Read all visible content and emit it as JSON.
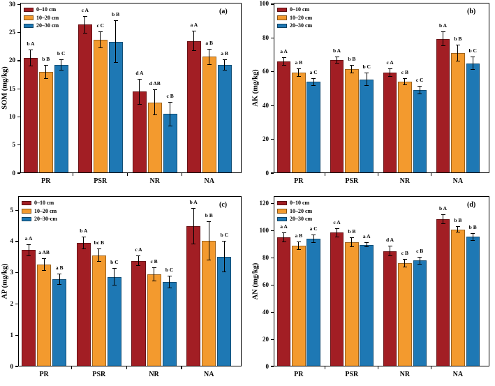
{
  "figure_title": "",
  "colors": {
    "depth_0_10": "#A21E24",
    "depth_10_20": "#F39A2E",
    "depth_20_30": "#1E78B4",
    "axis": "#000000",
    "background": "#FFFFFF"
  },
  "chart_data": [
    {
      "type": "bar",
      "panel_label": "(a)",
      "ylabel": "SOM (mg/kg)",
      "categories": [
        "PR",
        "PSR",
        "NR",
        "NA"
      ],
      "yticks": [
        0,
        5,
        10,
        15,
        20,
        25,
        30
      ],
      "ylim": [
        0,
        30.3
      ],
      "grid": false,
      "legend_position": "upper-left",
      "legend_labels": [
        "0–10 cm",
        "10–20 cm",
        "20–30 cm"
      ],
      "series": [
        {
          "name": "0–10 cm",
          "color": "#A21E24",
          "values": [
            20.5,
            26.4,
            14.5,
            23.5
          ],
          "errors": [
            1.5,
            1.6,
            2.3,
            1.8
          ],
          "sig_labels": [
            "b A",
            "c A",
            "d A",
            "a A"
          ]
        },
        {
          "name": "10–20 cm",
          "color": "#F39A2E",
          "values": [
            18.0,
            23.7,
            12.6,
            20.7
          ],
          "errors": [
            1.2,
            1.5,
            2.3,
            1.4
          ],
          "sig_labels": [
            "b B",
            "c C",
            "d AB",
            "a B"
          ]
        },
        {
          "name": "20–30 cm",
          "color": "#1E78B4",
          "values": [
            19.2,
            23.4,
            10.5,
            19.2
          ],
          "errors": [
            1.0,
            3.8,
            2.2,
            1.0
          ],
          "sig_labels": [
            "b C",
            "b B",
            "c B",
            "a B"
          ]
        }
      ]
    },
    {
      "type": "bar",
      "panel_label": "(b)",
      "ylabel": "AK (mg/kg)",
      "categories": [
        "PR",
        "PSR",
        "NR",
        "NA"
      ],
      "yticks": [
        0,
        20,
        40,
        60,
        80,
        100
      ],
      "ylim": [
        0,
        100.8
      ],
      "grid": false,
      "legend_position": "upper-left",
      "legend_labels": [
        "0–10 cm",
        "10–20 cm",
        "20–30 cm"
      ],
      "series": [
        {
          "name": "0–10 cm",
          "color": "#A21E24",
          "values": [
            66.0,
            67.0,
            59.5,
            79.5
          ],
          "errors": [
            2.5,
            2.0,
            2.5,
            4.5
          ],
          "sig_labels": [
            "a A",
            "b A",
            "c A",
            "b A"
          ]
        },
        {
          "name": "10–20 cm",
          "color": "#F39A2E",
          "values": [
            59.5,
            61.5,
            54.0,
            71.0
          ],
          "errors": [
            2.5,
            2.5,
            2.0,
            5.0
          ],
          "sig_labels": [
            "a B",
            "b B",
            "c B",
            "b B"
          ]
        },
        {
          "name": "20–30 cm",
          "color": "#1E78B4",
          "values": [
            54.0,
            55.5,
            49.0,
            65.0
          ],
          "errors": [
            2.2,
            4.0,
            2.5,
            4.0
          ],
          "sig_labels": [
            "a C",
            "b C",
            "c C",
            "b C"
          ]
        }
      ]
    },
    {
      "type": "bar",
      "panel_label": "(c)",
      "ylabel": "AP (mg/kg)",
      "categories": [
        "PR",
        "PSR",
        "NR",
        "NA"
      ],
      "yticks": [
        0,
        1,
        2,
        3,
        4,
        5
      ],
      "ylim": [
        0,
        5.45
      ],
      "grid": false,
      "legend_position": "upper-left",
      "legend_labels": [
        "0–10 cm",
        "10–20 cm",
        "20–30-cm"
      ],
      "series": [
        {
          "name": "0–10 cm",
          "color": "#A21E24",
          "values": [
            3.72,
            3.95,
            3.38,
            4.49
          ],
          "errors": [
            0.18,
            0.2,
            0.17,
            0.58
          ],
          "sig_labels": [
            "a A",
            "b A",
            "c A",
            "b A"
          ]
        },
        {
          "name": "10–20 cm",
          "color": "#F39A2E",
          "values": [
            3.27,
            3.56,
            2.95,
            4.02
          ],
          "errors": [
            0.2,
            0.22,
            0.22,
            0.62
          ],
          "sig_labels": [
            "a AB",
            "bc B",
            "c B",
            "b B"
          ]
        },
        {
          "name": "20–30-cm",
          "color": "#1E78B4",
          "values": [
            2.79,
            2.87,
            2.7,
            3.51
          ],
          "errors": [
            0.18,
            0.28,
            0.2,
            0.5
          ],
          "sig_labels": [
            "a B",
            "b C",
            "b C",
            "b C"
          ]
        }
      ]
    },
    {
      "type": "bar",
      "panel_label": "(d)",
      "ylabel": "AN (mg/kg)",
      "categories": [
        "PR",
        "PSR",
        "NR",
        "NA"
      ],
      "yticks": [
        0,
        20,
        40,
        60,
        80,
        100,
        120
      ],
      "ylim": [
        0,
        125.5
      ],
      "grid": false,
      "legend_position": "upper-left",
      "legend_labels": [
        "0–10 cm",
        "10–20 cm",
        "20–30 cm"
      ],
      "series": [
        {
          "name": "0–10 cm",
          "color": "#A21E24",
          "values": [
            95.0,
            98.5,
            85.0,
            108.5
          ],
          "errors": [
            3.5,
            3.5,
            3.8,
            3.5
          ],
          "sig_labels": [
            "a A",
            "c A",
            "d A",
            "b A"
          ]
        },
        {
          "name": "10–20 cm",
          "color": "#F39A2E",
          "values": [
            89.0,
            91.5,
            76.0,
            101.0
          ],
          "errors": [
            3.2,
            3.5,
            3.0,
            2.5
          ],
          "sig_labels": [
            "a B",
            "b B",
            "c B",
            "b B"
          ]
        },
        {
          "name": "20–30 cm",
          "color": "#1E78B4",
          "values": [
            94.0,
            89.5,
            78.0,
            95.5
          ],
          "errors": [
            3.2,
            1.8,
            3.0,
            2.8
          ],
          "sig_labels": [
            "a C",
            "a A",
            "c B",
            "b B"
          ]
        }
      ]
    }
  ]
}
